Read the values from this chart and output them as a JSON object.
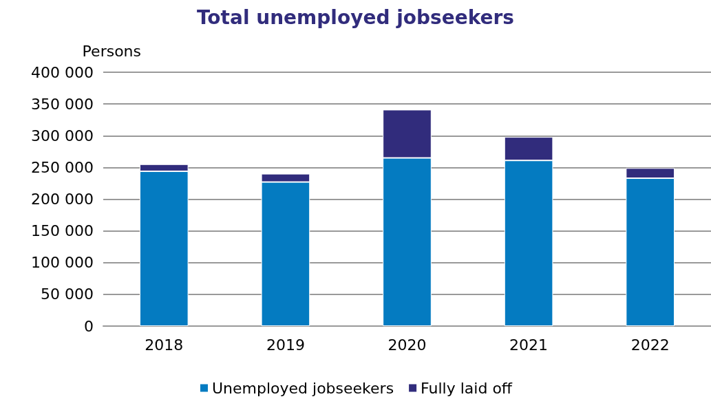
{
  "chart_data": {
    "type": "bar",
    "title": "Total unemployed jobseekers",
    "ylabel": "Persons",
    "categories": [
      "2018",
      "2019",
      "2020",
      "2021",
      "2022"
    ],
    "stacked": true,
    "series": [
      {
        "name": "Unemployed jobseekers",
        "color": "#047bc1",
        "values": [
          244000,
          227000,
          265000,
          261000,
          233000
        ]
      },
      {
        "name": "Fully laid off",
        "color": "#312c7c",
        "values": [
          11000,
          13000,
          76000,
          37000,
          16000
        ]
      }
    ],
    "ylim": [
      0,
      400000
    ],
    "yticks": [
      {
        "value": 0,
        "label": "0"
      },
      {
        "value": 50000,
        "label": "50 000"
      },
      {
        "value": 100000,
        "label": "100 000"
      },
      {
        "value": 150000,
        "label": "150 000"
      },
      {
        "value": 200000,
        "label": "200 000"
      },
      {
        "value": 250000,
        "label": "250 000"
      },
      {
        "value": 300000,
        "label": "300 000"
      },
      {
        "value": 350000,
        "label": "350 000"
      },
      {
        "value": 400000,
        "label": "400 000"
      }
    ],
    "grid": "y",
    "legend": "bottom"
  }
}
